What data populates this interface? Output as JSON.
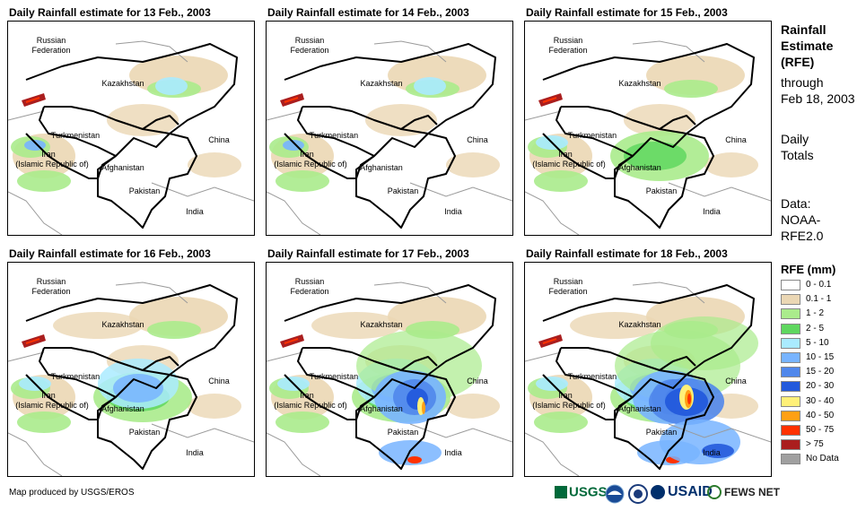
{
  "panels": [
    {
      "title": "Daily Rainfall estimate for 13 Feb., 2003",
      "intensity": 0
    },
    {
      "title": "Daily Rainfall estimate for 14 Feb., 2003",
      "intensity": 1
    },
    {
      "title": "Daily Rainfall estimate for 15 Feb., 2003",
      "intensity": 2
    },
    {
      "title": "Daily Rainfall estimate for 16 Feb., 2003",
      "intensity": 3
    },
    {
      "title": "Daily Rainfall estimate for 17 Feb., 2003",
      "intensity": 4
    },
    {
      "title": "Daily Rainfall estimate for 18 Feb., 2003",
      "intensity": 5
    }
  ],
  "countries": {
    "russia": "Russian",
    "federation": "Federation",
    "kazakhstan": "Kazakhstan",
    "turkmenistan": "Turkmenistan",
    "china": "China",
    "iran": "Iran",
    "iran_sub": "(Islamic Republic of)",
    "afghanistan": "Afghanistan",
    "pakistan": "Pakistan",
    "india": "India"
  },
  "sidebar": {
    "title_line1": "Rainfall",
    "title_line2": "Estimate",
    "title_line3": "(RFE)",
    "through": "through",
    "date": "Feb 18, 2003",
    "daily": "Daily",
    "totals": "Totals",
    "data_label": "Data:",
    "data_source1": "NOAA-",
    "data_source2": "RFE2.0"
  },
  "legend": {
    "title": "RFE (mm)",
    "items": [
      {
        "label": "0 - 0.1",
        "color": "#ffffff"
      },
      {
        "label": "0.1 - 1",
        "color": "#ebd7b4"
      },
      {
        "label": "1 - 2",
        "color": "#aaeb8c"
      },
      {
        "label": "2 - 5",
        "color": "#5fd75f"
      },
      {
        "label": "5 - 10",
        "color": "#aaebff"
      },
      {
        "label": "10 - 15",
        "color": "#78b4ff"
      },
      {
        "label": "15 - 20",
        "color": "#5087eb"
      },
      {
        "label": "20 - 30",
        "color": "#235adc"
      },
      {
        "label": "30 - 40",
        "color": "#fff078"
      },
      {
        "label": "40 - 50",
        "color": "#ffa014"
      },
      {
        "label": "50 - 75",
        "color": "#ff3200"
      },
      {
        "label": "> 75",
        "color": "#aa1e1e"
      },
      {
        "label": "No Data",
        "color": "#a0a0a0"
      }
    ]
  },
  "footer": {
    "credit": "Map produced by USGS/EROS",
    "usgs": "USGS",
    "usaid": "USAID",
    "fewsnet": "FEWS NET"
  }
}
